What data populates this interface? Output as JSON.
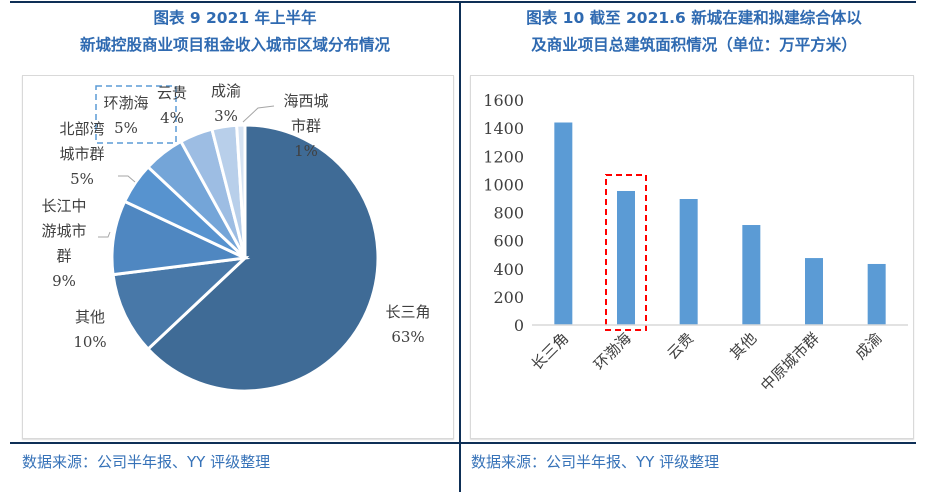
{
  "left": {
    "title_line1": "图表 9 2021 年上半年",
    "title_line2": "新城控股商业项目租金收入城市区域分布情况",
    "source": "数据来源：公司半年报、YY 评级整理"
  },
  "right": {
    "title_line1": "图表 10 截至 2021.6 新城在建和拟建综合体以",
    "title_line2": "及商业项目总建筑面积情况（单位：万平方米）",
    "source": "数据来源：公司半年报、YY 评级整理"
  },
  "chart_data": [
    {
      "type": "pie",
      "slices": [
        {
          "label": "长三角",
          "value": 63,
          "pct_label": "63%",
          "color": "#3f6b96"
        },
        {
          "label": "其他",
          "value": 10,
          "pct_label": "10%",
          "color": "#4878a8"
        },
        {
          "label": "长江中游城市群",
          "value": 9,
          "pct_label": "9%",
          "color": "#4f87c1"
        },
        {
          "label": "北部湾城市群",
          "value": 5,
          "pct_label": "5%",
          "color": "#5793cf"
        },
        {
          "label": "环渤海",
          "value": 5,
          "pct_label": "5%",
          "color": "#74a5d8"
        },
        {
          "label": "云贵",
          "value": 4,
          "pct_label": "4%",
          "color": "#9dbde3"
        },
        {
          "label": "成渝",
          "value": 3,
          "pct_label": "3%",
          "color": "#b8cfea"
        },
        {
          "label": "海西城市群",
          "value": 1,
          "pct_label": "1%",
          "color": "#d6e3f3"
        }
      ],
      "highlight": "环渤海",
      "highlight_color": "#5b9bd5"
    },
    {
      "type": "bar",
      "categories": [
        "长三角",
        "环渤海",
        "云贵",
        "其他",
        "中原城市群",
        "成渝"
      ],
      "values": [
        1440,
        953,
        896,
        711,
        476,
        434
      ],
      "ylim": [
        0,
        1600
      ],
      "yticks": [
        0,
        200,
        400,
        600,
        800,
        1000,
        1200,
        1400,
        1600
      ],
      "bar_color": "#5b9bd5",
      "highlight": "环渤海",
      "highlight_color": "#ff0000",
      "grid": false
    }
  ]
}
